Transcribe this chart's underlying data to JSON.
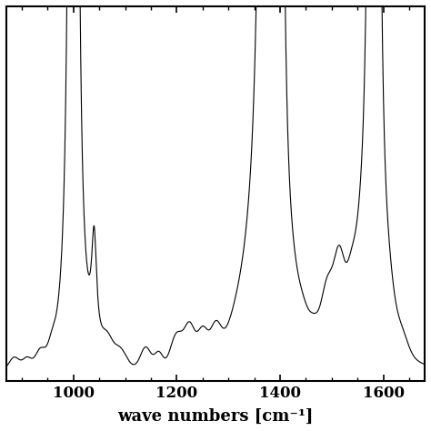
{
  "xlabel": "wave numbers [cm⁻¹]",
  "xmin": 870,
  "xmax": 1680,
  "xticks": [
    1000,
    1200,
    1400,
    1600
  ],
  "line_color": "#000000",
  "background_color": "#ffffff",
  "linewidth": 0.8
}
